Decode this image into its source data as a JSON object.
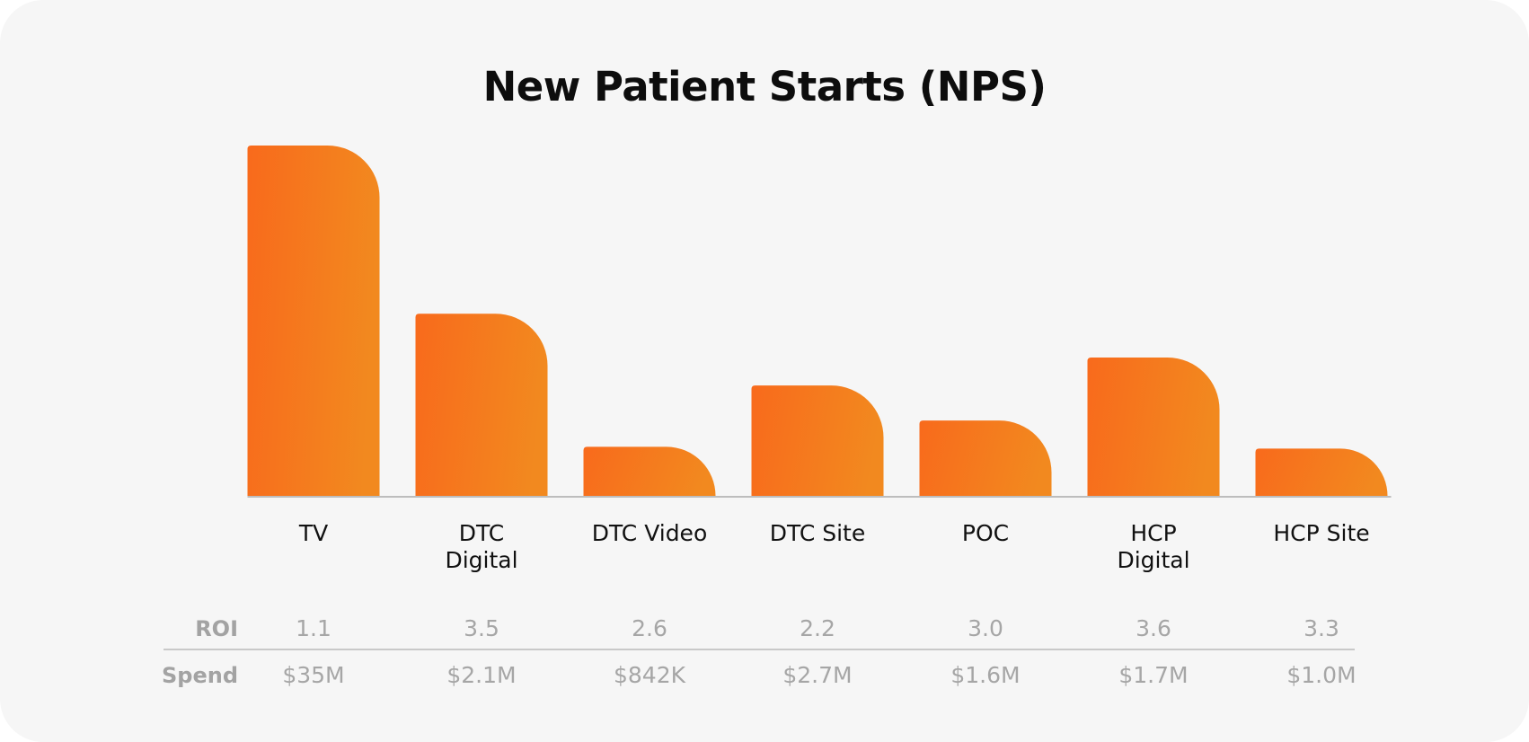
{
  "chart_data": {
    "type": "bar",
    "title": "New Patient Starts (NPS)",
    "categories": [
      "TV",
      "DTC Digital",
      "DTC Video",
      "DTC Site",
      "POC",
      "HCP Digital",
      "HCP Site"
    ],
    "category_lines": [
      [
        "TV"
      ],
      [
        "DTC",
        "Digital"
      ],
      [
        "DTC Video"
      ],
      [
        "DTC Site"
      ],
      [
        "POC"
      ],
      [
        "HCP",
        "Digital"
      ],
      [
        "HCP Site"
      ]
    ],
    "values": [
      100,
      52,
      14,
      31.5,
      21.5,
      39.5,
      13.5
    ],
    "value_scale": "relative (no axis printed)",
    "ylim": [
      0,
      100
    ],
    "grid": false,
    "table_rows": [
      {
        "label": "ROI",
        "values": [
          "1.1",
          "3.5",
          "2.6",
          "2.2",
          "3.0",
          "3.6",
          "3.3"
        ]
      },
      {
        "label": "Spend",
        "values": [
          "$35M",
          "$2.1M",
          "$842K",
          "$2.7M",
          "$1.6M",
          "$1.7M",
          "$1.0M"
        ]
      }
    ],
    "colors": {
      "bar_start": "#f86a1c",
      "bar_end": "#f2891f",
      "baseline": "#bdbdbd",
      "table_text": "#a6a6a6",
      "title": "#0d0d0d"
    }
  }
}
